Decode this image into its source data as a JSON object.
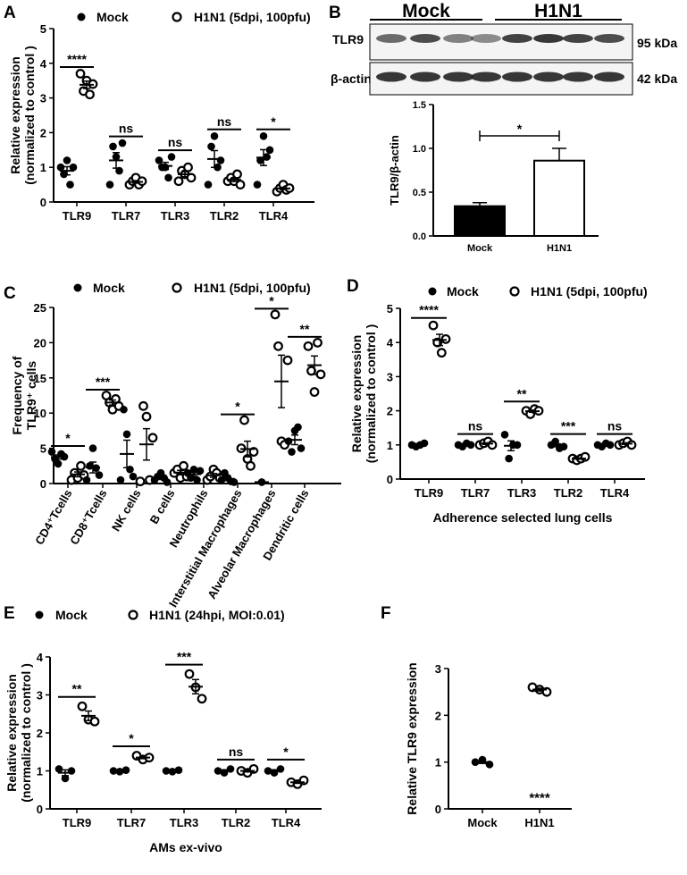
{
  "panel_letters": {
    "a": "A",
    "b": "B",
    "c": "C",
    "d": "D",
    "e": "E",
    "f": "F"
  },
  "legend": {
    "mock": "Mock",
    "h1n1_5dpi": "H1N1 (5dpi, 100pfu)",
    "h1n1_24hpi": "H1N1 (24hpi, MOI:0.01)"
  },
  "western_blot": {
    "group_labels": [
      "Mock",
      "H1N1"
    ],
    "rows": [
      {
        "protein": "TLR9",
        "size": "95 kDa"
      },
      {
        "protein": "β-actin",
        "size": "42 kDa"
      }
    ]
  },
  "colors": {
    "mock": "#000000",
    "h1n1": "#ffffff",
    "axis": "#000000",
    "band": "#222222"
  },
  "chart_data": [
    {
      "id": "A",
      "type": "scatter",
      "ylabel": "Relative expression\n(normalized to control )",
      "xlabel": "",
      "ylim": [
        0,
        5
      ],
      "yticks": [
        "0",
        "1",
        "2",
        "3",
        "4",
        "5"
      ],
      "categories": [
        "TLR9",
        "TLR7",
        "TLR3",
        "TLR2",
        "TLR4"
      ],
      "series": [
        {
          "name": "Mock",
          "values": [
            [
              1.0,
              0.8,
              1.2,
              0.5,
              1.0
            ],
            [
              0.5,
              1.6,
              1.3,
              0.9,
              1.7
            ],
            [
              1.2,
              1.0,
              1.0,
              0.7,
              1.3
            ],
            [
              0.5,
              1.6,
              1.9,
              1.0,
              1.2
            ],
            [
              0.5,
              1.2,
              1.9,
              1.3,
              1.5
            ]
          ]
        },
        {
          "name": "H1N1 (5dpi, 100pfu)",
          "values": [
            [
              3.7,
              3.2,
              3.5,
              3.1,
              3.4
            ],
            [
              0.5,
              0.6,
              0.7,
              0.5,
              0.6
            ],
            [
              0.6,
              0.9,
              0.8,
              1.0,
              0.7
            ],
            [
              0.6,
              0.7,
              0.6,
              0.8,
              0.5
            ],
            [
              0.3,
              0.4,
              0.5,
              0.35,
              0.4
            ]
          ]
        }
      ],
      "significance": [
        "****",
        "ns",
        "ns",
        "ns",
        "*"
      ]
    },
    {
      "id": "B",
      "type": "bar",
      "ylabel": "TLR9/β-actin",
      "xlabel": "",
      "ylim": [
        0,
        1.5
      ],
      "yticks": [
        "0.0",
        "0.5",
        "1.0",
        "1.5"
      ],
      "categories": [
        "Mock",
        "H1N1"
      ],
      "values": [
        0.34,
        0.86
      ],
      "errors": [
        0.04,
        0.14
      ],
      "significance": [
        "*"
      ]
    },
    {
      "id": "C",
      "type": "scatter",
      "ylabel": "Frequency of\nTLR9⁺ cells",
      "xlabel": "",
      "ylim": [
        0,
        25
      ],
      "yticks": [
        "0",
        "5",
        "10",
        "15",
        "20",
        "25"
      ],
      "categories": [
        "CD4⁺Tcells",
        "CD8⁺Tcells",
        "NK cells",
        "B cells",
        "Neutrophils",
        "Interstitial Macrophages",
        "Alveolar Macrophages",
        "Dendritic cells"
      ],
      "series": [
        {
          "name": "Mock",
          "values": [
            [
              4.5,
              3.5,
              2.8,
              4.2,
              3.8
            ],
            [
              0.5,
              2.5,
              5.0,
              2.2,
              1.2
            ],
            [
              0.5,
              10.5,
              7.0,
              2.0,
              1.0
            ],
            [
              0.5,
              1.0,
              1.5,
              0.8,
              0.2
            ],
            [
              1.5,
              0.8,
              2.0,
              0.5,
              1.8
            ],
            [
              0.5,
              1.5,
              0.8,
              0.3,
              0.2
            ],
            [
              0.2
            ],
            [
              6.0,
              4.5,
              7.5,
              8.0,
              5.0
            ]
          ]
        },
        {
          "name": "H1N1 (5dpi, 100pfu)",
          "values": [
            [
              0.5,
              1.5,
              0.8,
              2.5,
              1.2
            ],
            [
              12.5,
              11.5,
              10.5,
              12.0,
              11.0
            ],
            [
              0.3,
              11.0,
              9.5,
              0.5,
              6.5
            ],
            [
              1.5,
              2.0,
              0.8,
              2.5,
              1.0
            ],
            [
              0.5,
              1.0,
              2.0,
              1.5,
              0.8
            ],
            [
              5.0,
              9.0,
              3.5,
              2.5,
              4.5
            ],
            [
              24.0,
              19.5,
              6.0,
              5.5,
              17.5
            ],
            [
              19.5,
              16.0,
              13.0,
              20.0,
              15.5
            ]
          ]
        }
      ],
      "significance": [
        "*",
        "***",
        "",
        "",
        "",
        "*",
        "*",
        "**"
      ]
    },
    {
      "id": "D",
      "type": "scatter",
      "ylabel": "Relative expression\n(normalized to control )",
      "xlabel": "Adherence selected lung cells",
      "ylim": [
        0,
        5
      ],
      "yticks": [
        "0",
        "1",
        "2",
        "3",
        "4",
        "5"
      ],
      "categories": [
        "TLR9",
        "TLR7",
        "TLR3",
        "TLR2",
        "TLR4"
      ],
      "series": [
        {
          "name": "Mock",
          "values": [
            [
              1.0,
              0.95,
              1.0,
              1.05
            ],
            [
              1.0,
              0.95,
              1.05,
              1.0
            ],
            [
              1.3,
              0.6,
              1.0,
              1.0
            ],
            [
              1.0,
              1.1,
              0.9,
              0.95
            ],
            [
              1.0,
              0.95,
              1.05,
              1.0
            ]
          ]
        },
        {
          "name": "H1N1 (5dpi, 100pfu)",
          "values": [
            [
              4.5,
              4.0,
              3.7,
              4.1
            ],
            [
              1.0,
              1.05,
              1.1,
              1.0
            ],
            [
              2.0,
              1.9,
              2.05,
              2.0
            ],
            [
              0.6,
              0.55,
              0.6,
              0.65
            ],
            [
              1.0,
              1.05,
              1.1,
              1.0
            ]
          ]
        }
      ],
      "significance": [
        "****",
        "ns",
        "**",
        "***",
        "ns"
      ]
    },
    {
      "id": "E",
      "type": "scatter",
      "ylabel": "Relative expression\n(normalized to control )",
      "xlabel": "AMs ex-vivo",
      "ylim": [
        0,
        4
      ],
      "yticks": [
        "0",
        "1",
        "2",
        "3",
        "4"
      ],
      "categories": [
        "TLR9",
        "TLR7",
        "TLR3",
        "TLR2",
        "TLR4"
      ],
      "series": [
        {
          "name": "Mock",
          "values": [
            [
              1.05,
              0.8,
              1.0
            ],
            [
              1.0,
              0.98,
              1.02
            ],
            [
              1.0,
              0.98,
              1.02
            ],
            [
              1.0,
              0.95,
              1.05
            ],
            [
              1.0,
              0.95,
              1.05
            ]
          ]
        },
        {
          "name": "H1N1 (24hpi, MOI:0.01)",
          "values": [
            [
              2.7,
              2.35,
              2.3
            ],
            [
              1.4,
              1.3,
              1.35
            ],
            [
              3.55,
              3.2,
              2.9
            ],
            [
              1.0,
              0.95,
              1.05
            ],
            [
              0.7,
              0.65,
              0.75
            ]
          ]
        }
      ],
      "significance": [
        "**",
        "*",
        "***",
        "ns",
        "*"
      ]
    },
    {
      "id": "F",
      "type": "scatter",
      "ylabel": "Relative TLR9 expression",
      "xlabel": "",
      "ylim": [
        0,
        3
      ],
      "yticks": [
        "0",
        "1",
        "2",
        "3"
      ],
      "categories": [
        "Mock",
        "H1N1"
      ],
      "series": [
        {
          "name": "Mock",
          "values": [
            [
              1.0,
              1.05,
              0.95
            ]
          ]
        },
        {
          "name": "H1N1",
          "values": [
            [
              2.6,
              2.55,
              2.5
            ]
          ]
        }
      ],
      "significance": [
        "",
        "****"
      ]
    }
  ]
}
